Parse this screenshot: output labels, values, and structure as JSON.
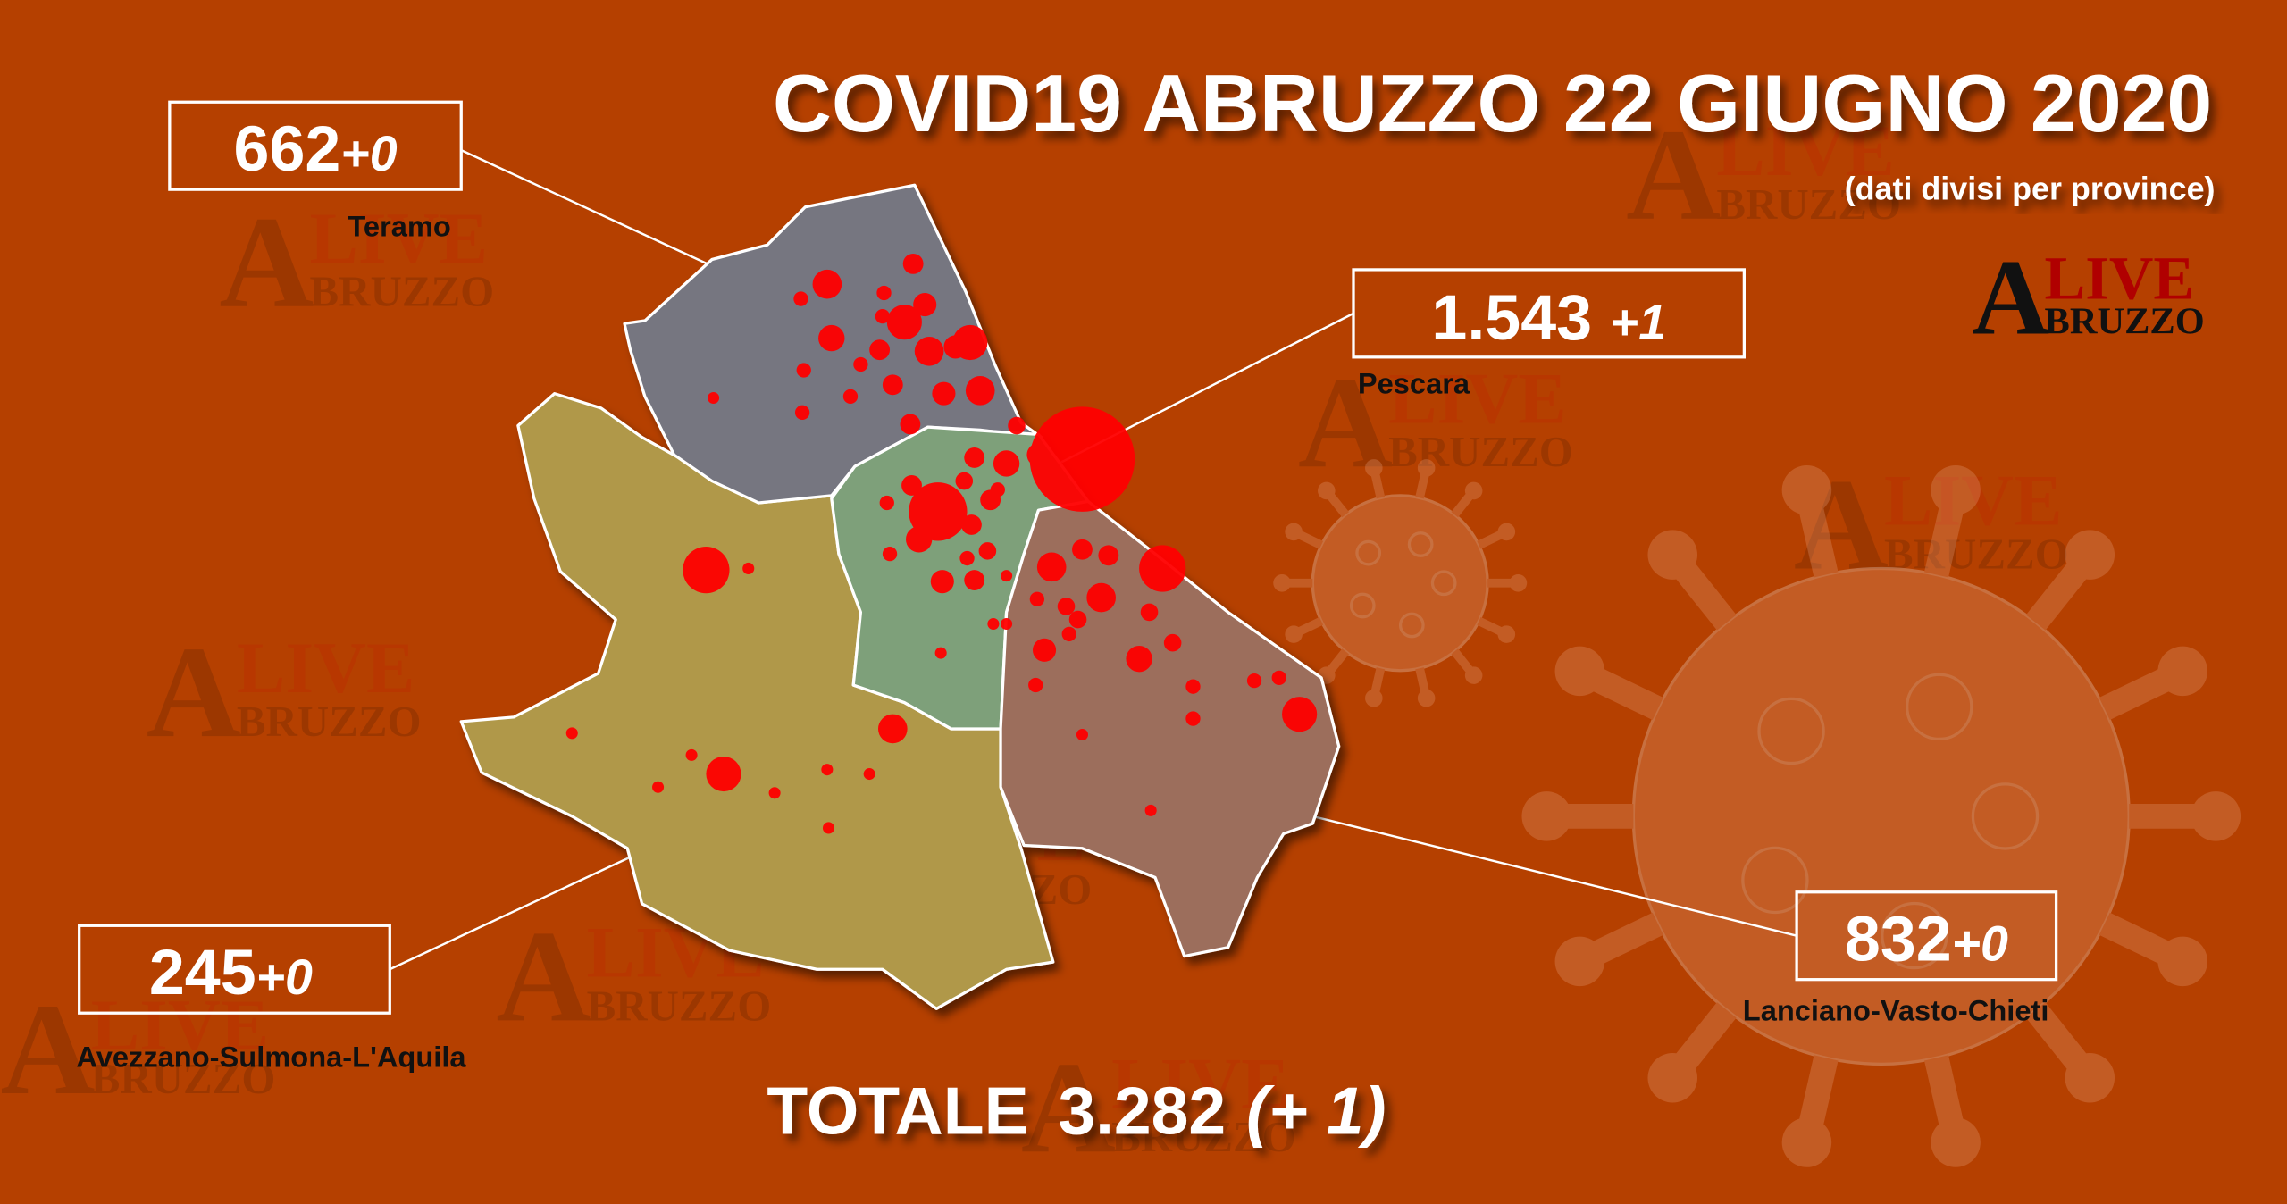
{
  "title": "COVID19 ABRUZZO 22 GIUGNO 2020",
  "subtitle": "(dati divisi per province)",
  "logo": {
    "line1": "LIVE",
    "initial": "A",
    "line2": "BRUZZO"
  },
  "colors": {
    "background": "#b54000",
    "teramo": "#767680",
    "pescara": "#7ea07a",
    "chieti": "#9c6e5c",
    "aquila": "#b09848",
    "dots": "#ff0000",
    "logo_red": "#b00000"
  },
  "provinces": {
    "teramo": {
      "name": "Teramo",
      "total": "662",
      "delta": "+0"
    },
    "pescara": {
      "name": "Pescara",
      "total": "1.543",
      "delta": "+1"
    },
    "chieti": {
      "name": "Lanciano-Vasto-Chieti",
      "total": "832",
      "delta": "+0"
    },
    "aquila": {
      "name": "Avezzano-Sulmona-L'Aquila",
      "total": "245",
      "delta": "+0"
    }
  },
  "totale": {
    "label": "TOTALE",
    "value": "3.282",
    "delta": "(+ 1)"
  }
}
